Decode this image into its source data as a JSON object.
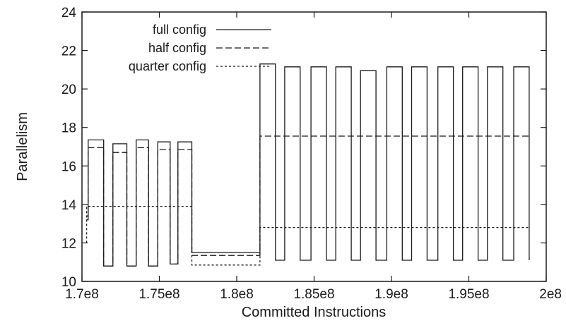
{
  "chart_data": {
    "type": "line",
    "title": "",
    "xlabel": "Committed Instructions",
    "ylabel": "Parallelism",
    "xlim": [
      170000000,
      200000000
    ],
    "ylim": [
      10,
      24
    ],
    "x_ticks": [
      {
        "value": 170000000,
        "label": "1.7e8"
      },
      {
        "value": 175000000,
        "label": "1.75e8"
      },
      {
        "value": 180000000,
        "label": "1.8e8"
      },
      {
        "value": 185000000,
        "label": "1.85e8"
      },
      {
        "value": 190000000,
        "label": "1.9e8"
      },
      {
        "value": 195000000,
        "label": "1.95e8"
      },
      {
        "value": 200000000,
        "label": "2e8"
      }
    ],
    "y_ticks": [
      {
        "value": 10,
        "label": "10"
      },
      {
        "value": 12,
        "label": "12"
      },
      {
        "value": 14,
        "label": "14"
      },
      {
        "value": 16,
        "label": "16"
      },
      {
        "value": 18,
        "label": "18"
      },
      {
        "value": 20,
        "label": "20"
      },
      {
        "value": 22,
        "label": "22"
      },
      {
        "value": 24,
        "label": "24"
      }
    ],
    "grid": false,
    "legend_position": "top-left",
    "series": [
      {
        "name": "full config",
        "style": "solid",
        "color": "#1a1a1a",
        "points": [
          [
            170300000,
            13.4
          ],
          [
            170400000,
            13.4
          ],
          [
            170400000,
            17.35
          ],
          [
            171400000,
            17.35
          ],
          [
            171400000,
            10.8
          ],
          [
            172000000,
            10.8
          ],
          [
            172000000,
            17.15
          ],
          [
            172900000,
            17.15
          ],
          [
            172900000,
            10.8
          ],
          [
            173500000,
            10.8
          ],
          [
            173500000,
            17.35
          ],
          [
            174300000,
            17.35
          ],
          [
            174300000,
            10.8
          ],
          [
            174900000,
            10.8
          ],
          [
            174900000,
            17.25
          ],
          [
            175700000,
            17.25
          ],
          [
            175700000,
            10.9
          ],
          [
            176200000,
            10.9
          ],
          [
            176200000,
            17.25
          ],
          [
            177100000,
            17.25
          ],
          [
            177100000,
            11.5
          ],
          [
            181500000,
            11.5
          ],
          [
            181500000,
            21.3
          ],
          [
            182500000,
            21.3
          ],
          [
            182500000,
            11.1
          ],
          [
            183100000,
            11.1
          ],
          [
            183100000,
            21.15
          ],
          [
            184100000,
            21.15
          ],
          [
            184100000,
            11.1
          ],
          [
            184800000,
            11.1
          ],
          [
            184800000,
            21.15
          ],
          [
            185800000,
            21.15
          ],
          [
            185800000,
            11.1
          ],
          [
            186400000,
            11.1
          ],
          [
            186400000,
            21.15
          ],
          [
            187400000,
            21.15
          ],
          [
            187400000,
            11.1
          ],
          [
            188000000,
            11.1
          ],
          [
            188000000,
            20.95
          ],
          [
            189000000,
            20.95
          ],
          [
            189000000,
            11.1
          ],
          [
            189700000,
            11.1
          ],
          [
            189700000,
            21.15
          ],
          [
            190700000,
            21.15
          ],
          [
            190700000,
            11.1
          ],
          [
            191300000,
            11.1
          ],
          [
            191300000,
            21.15
          ],
          [
            192300000,
            21.15
          ],
          [
            192300000,
            11.1
          ],
          [
            193000000,
            11.1
          ],
          [
            193000000,
            21.15
          ],
          [
            194000000,
            21.15
          ],
          [
            194000000,
            11.1
          ],
          [
            194600000,
            11.1
          ],
          [
            194600000,
            21.15
          ],
          [
            195600000,
            21.15
          ],
          [
            195600000,
            11.1
          ],
          [
            196200000,
            11.1
          ],
          [
            196200000,
            21.15
          ],
          [
            197200000,
            21.15
          ],
          [
            197200000,
            11.1
          ],
          [
            197900000,
            11.1
          ],
          [
            197900000,
            21.15
          ],
          [
            198900000,
            21.15
          ],
          [
            198900000,
            11.1
          ]
        ]
      },
      {
        "name": "half config",
        "style": "dashed",
        "color": "#1a1a1a",
        "points": [
          [
            170300000,
            13.2
          ],
          [
            170400000,
            13.2
          ],
          [
            170400000,
            16.95
          ],
          [
            171400000,
            16.95
          ],
          [
            171400000,
            10.8
          ],
          [
            172000000,
            10.8
          ],
          [
            172000000,
            16.7
          ],
          [
            172900000,
            16.7
          ],
          [
            172900000,
            10.8
          ],
          [
            173500000,
            10.8
          ],
          [
            173500000,
            16.95
          ],
          [
            174300000,
            16.95
          ],
          [
            174300000,
            10.8
          ],
          [
            174900000,
            10.8
          ],
          [
            174900000,
            16.85
          ],
          [
            175700000,
            16.85
          ],
          [
            175700000,
            10.9
          ],
          [
            176200000,
            10.9
          ],
          [
            176200000,
            16.85
          ],
          [
            177100000,
            16.85
          ],
          [
            177100000,
            11.35
          ],
          [
            181500000,
            11.35
          ],
          [
            181500000,
            17.55
          ],
          [
            198900000,
            17.55
          ]
        ]
      },
      {
        "name": "quarter config",
        "style": "dotted",
        "color": "#1a1a1a",
        "points": [
          [
            170300000,
            12.0
          ],
          [
            170300000,
            13.9
          ],
          [
            177100000,
            13.9
          ],
          [
            177100000,
            10.85
          ],
          [
            181500000,
            10.85
          ],
          [
            181500000,
            12.8
          ],
          [
            198900000,
            12.8
          ]
        ]
      }
    ]
  }
}
